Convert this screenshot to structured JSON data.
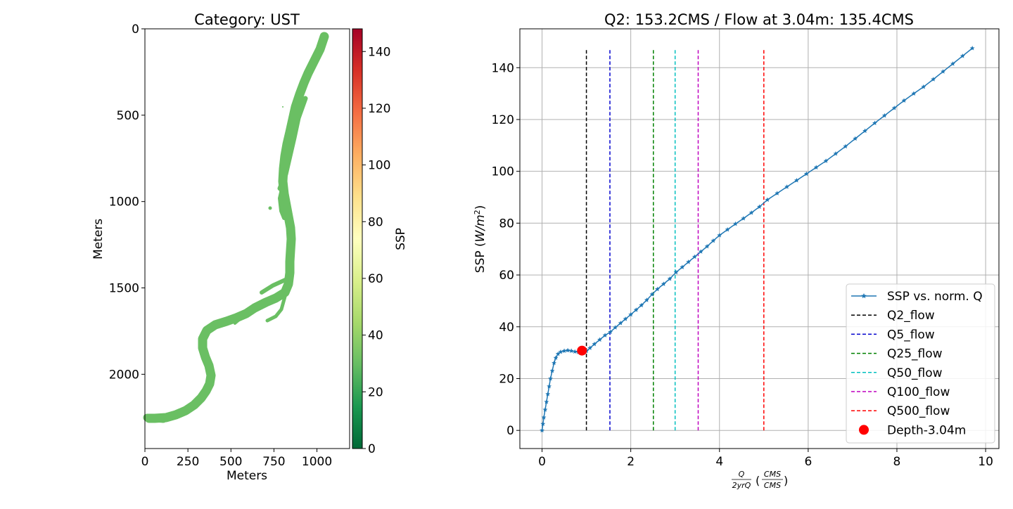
{
  "chart_data": [
    {
      "type": "heatmap",
      "title": "Category: UST",
      "xlabel": "Meters",
      "ylabel": "Meters",
      "xlim": [
        0,
        1190
      ],
      "ylim": [
        2430,
        0
      ],
      "x_ticks": [
        "0",
        "250",
        "500",
        "750",
        "1000"
      ],
      "y_ticks": [
        "0",
        "500",
        "1000",
        "1500",
        "2000"
      ],
      "fill_color": "#6abf63",
      "fill_value": 27,
      "colorbar": {
        "label": "SSP",
        "range": [
          0,
          148
        ],
        "ticks": [
          "0",
          "20",
          "40",
          "60",
          "80",
          "100",
          "120",
          "140"
        ],
        "colormap": "RdYlGn_r"
      }
    },
    {
      "type": "line",
      "title": "Q2: 153.2CMS / Flow at 3.04m: 135.4CMS",
      "xlabel": "Q/2yrQ (CMS/CMS)",
      "ylabel": "SSP (W/m²)",
      "xlim": [
        -0.5,
        10.3
      ],
      "ylim": [
        -7,
        155
      ],
      "x_ticks": [
        "0",
        "2",
        "4",
        "6",
        "8",
        "10"
      ],
      "y_ticks": [
        "0",
        "20",
        "40",
        "60",
        "80",
        "100",
        "120",
        "140"
      ],
      "grid": true,
      "legend_position": "lower-right",
      "series": [
        {
          "name": "SSP vs. norm. Q",
          "color": "#1f77b4",
          "marker": "star",
          "points": [
            [
              0,
              0
            ],
            [
              0.02,
              2.5
            ],
            [
              0.04,
              5
            ],
            [
              0.07,
              8
            ],
            [
              0.1,
              11
            ],
            [
              0.13,
              14
            ],
            [
              0.16,
              17
            ],
            [
              0.19,
              20
            ],
            [
              0.23,
              23
            ],
            [
              0.27,
              26
            ],
            [
              0.31,
              28
            ],
            [
              0.36,
              29.5
            ],
            [
              0.42,
              30.3
            ],
            [
              0.5,
              30.7
            ],
            [
              0.58,
              30.9
            ],
            [
              0.66,
              30.7
            ],
            [
              0.74,
              30.4
            ],
            [
              0.82,
              30.2
            ],
            [
              0.88,
              30.1
            ],
            [
              0.94,
              30.2
            ],
            [
              1.0,
              30.6
            ],
            [
              1.08,
              31.8
            ],
            [
              1.18,
              33.3
            ],
            [
              1.3,
              35
            ],
            [
              1.42,
              36.7
            ],
            [
              1.54,
              38
            ],
            [
              1.65,
              39.7
            ],
            [
              1.77,
              41.4
            ],
            [
              1.88,
              43
            ],
            [
              2.0,
              44.7
            ],
            [
              2.12,
              46.5
            ],
            [
              2.24,
              48.3
            ],
            [
              2.36,
              50.3
            ],
            [
              2.48,
              52.5
            ],
            [
              2.6,
              54.5
            ],
            [
              2.74,
              56.5
            ],
            [
              2.88,
              58.5
            ],
            [
              3.02,
              61
            ],
            [
              3.16,
              63
            ],
            [
              3.3,
              65
            ],
            [
              3.44,
              67
            ],
            [
              3.58,
              69
            ],
            [
              3.72,
              71
            ],
            [
              3.86,
              73.2
            ],
            [
              4.0,
              75.3
            ],
            [
              4.18,
              77.5
            ],
            [
              4.36,
              79.7
            ],
            [
              4.54,
              81.8
            ],
            [
              4.72,
              84
            ],
            [
              4.9,
              86.3
            ],
            [
              5.08,
              89
            ],
            [
              5.3,
              91.5
            ],
            [
              5.52,
              94
            ],
            [
              5.74,
              96.5
            ],
            [
              5.96,
              99
            ],
            [
              6.18,
              101.5
            ],
            [
              6.4,
              104
            ],
            [
              6.62,
              106.8
            ],
            [
              6.84,
              109.6
            ],
            [
              7.06,
              112.6
            ],
            [
              7.28,
              115.6
            ],
            [
              7.5,
              118.6
            ],
            [
              7.72,
              121.5
            ],
            [
              7.94,
              124.4
            ],
            [
              8.16,
              127.3
            ],
            [
              8.38,
              130
            ],
            [
              8.6,
              132.6
            ],
            [
              8.82,
              135.5
            ],
            [
              9.04,
              138.5
            ],
            [
              9.26,
              141.5
            ],
            [
              9.48,
              144.5
            ],
            [
              9.7,
              147.5
            ]
          ]
        },
        {
          "name": "Q2_flow",
          "color": "#000000",
          "style": "dashed",
          "x": 1.0,
          "y_range": [
            0,
            147.5
          ]
        },
        {
          "name": "Q5_flow",
          "color": "#0000cd",
          "style": "dashed",
          "x": 1.53,
          "y_range": [
            0,
            147.5
          ]
        },
        {
          "name": "Q25_flow",
          "color": "#008000",
          "style": "dashed",
          "x": 2.51,
          "y_range": [
            0,
            147.5
          ]
        },
        {
          "name": "Q50_flow",
          "color": "#00bfbf",
          "style": "dashed",
          "x": 3.0,
          "y_range": [
            0,
            147.5
          ]
        },
        {
          "name": "Q100_flow",
          "color": "#bf00bf",
          "style": "dashed",
          "x": 3.52,
          "y_range": [
            0,
            147.5
          ]
        },
        {
          "name": "Q500_flow",
          "color": "#ff0000",
          "style": "dashed",
          "x": 5.0,
          "y_range": [
            0,
            147.5
          ]
        },
        {
          "name": "Depth-3.04m",
          "color": "#ff0000",
          "marker": "circle",
          "points": [
            [
              0.9,
              30.8
            ]
          ]
        }
      ]
    }
  ]
}
